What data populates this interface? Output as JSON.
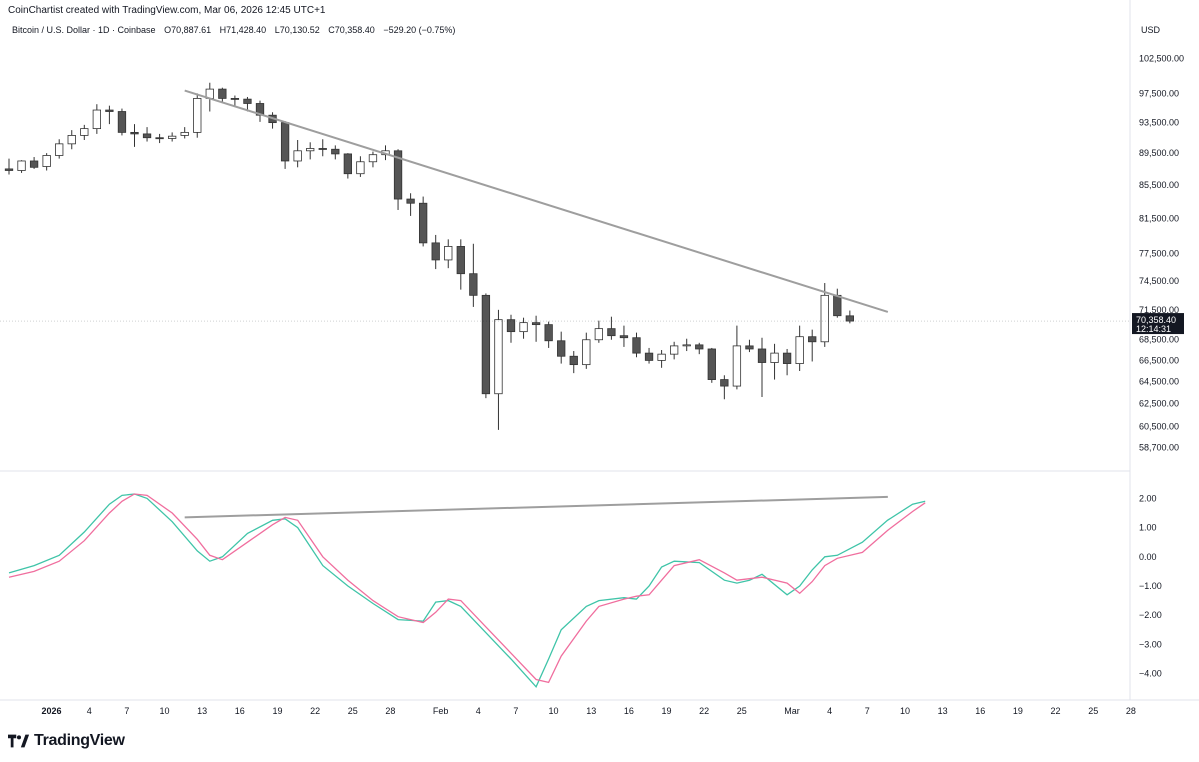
{
  "header": {
    "credit": "CoinChartist created with TradingView.com, Mar 06, 2026 12:45 UTC+1",
    "symbol": "Bitcoin / U.S. Dollar · 1D · Coinbase",
    "open": "O70,887.61",
    "high": "H71,428.40",
    "low": "L70,130.52",
    "close": "C70,358.40",
    "change": "−529.20 (−0.75%)",
    "currency": "USD"
  },
  "price_badge": {
    "price": "70,358.40",
    "countdown": "12:14:31"
  },
  "footer": {
    "brand": "TradingView"
  },
  "colors": {
    "up_fill": "#ffffff",
    "down_fill": "#555555",
    "wick": "#333333",
    "trendline": "#9e9e9e",
    "fast_line": "#3fc4a8",
    "slow_line": "#f06e9e",
    "badge_bg": "#131722"
  },
  "chart_data": [
    {
      "type": "candlestick",
      "title": "Bitcoin / U.S. Dollar · 1D · Coinbase",
      "y_scale": "log",
      "ylim": [
        57000,
        104500
      ],
      "price_ticks": [
        "102,500.00",
        "97,500.00",
        "93,500.00",
        "89,500.00",
        "85,500.00",
        "81,500.00",
        "77,500.00",
        "74,500.00",
        "71,500.00",
        "68,500.00",
        "66,500.00",
        "64,500.00",
        "62,500.00",
        "60,500.00",
        "58,700.00"
      ],
      "x_ticks": [
        "2026",
        "4",
        "7",
        "10",
        "13",
        "16",
        "19",
        "22",
        "25",
        "28",
        "Feb",
        "4",
        "7",
        "10",
        "13",
        "16",
        "19",
        "22",
        "25",
        "Mar",
        "4",
        "7",
        "10",
        "13",
        "16",
        "19",
        "22",
        "25",
        "28"
      ],
      "trendline": {
        "from": [
          "2026-01-14",
          97900
        ],
        "to": [
          "2026-03-08",
          72000
        ]
      },
      "candles": [
        {
          "date": "2025-12-31",
          "o": 87500,
          "h": 88800,
          "l": 86800,
          "c": 87300
        },
        {
          "date": "2026-01-01",
          "o": 87300,
          "h": 88600,
          "l": 87000,
          "c": 88500
        },
        {
          "date": "2026-01-02",
          "o": 88500,
          "h": 89000,
          "l": 87500,
          "c": 87700
        },
        {
          "date": "2026-01-03",
          "o": 87800,
          "h": 89500,
          "l": 87300,
          "c": 89200
        },
        {
          "date": "2026-01-04",
          "o": 89200,
          "h": 91300,
          "l": 88800,
          "c": 90700
        },
        {
          "date": "2026-01-05",
          "o": 90700,
          "h": 92500,
          "l": 90000,
          "c": 91800
        },
        {
          "date": "2026-01-06",
          "o": 91800,
          "h": 93200,
          "l": 91200,
          "c": 92700
        },
        {
          "date": "2026-01-07",
          "o": 92700,
          "h": 96000,
          "l": 92000,
          "c": 95200
        },
        {
          "date": "2026-01-08",
          "o": 95200,
          "h": 95800,
          "l": 93300,
          "c": 95000
        },
        {
          "date": "2026-01-09",
          "o": 95000,
          "h": 95400,
          "l": 91800,
          "c": 92200
        },
        {
          "date": "2026-01-10",
          "o": 92200,
          "h": 93300,
          "l": 90300,
          "c": 92000
        },
        {
          "date": "2026-01-11",
          "o": 92000,
          "h": 92900,
          "l": 91000,
          "c": 91500
        },
        {
          "date": "2026-01-12",
          "o": 91500,
          "h": 92000,
          "l": 90800,
          "c": 91400
        },
        {
          "date": "2026-01-13",
          "o": 91400,
          "h": 92200,
          "l": 91000,
          "c": 91700
        },
        {
          "date": "2026-01-14",
          "o": 91800,
          "h": 92900,
          "l": 91400,
          "c": 92200
        },
        {
          "date": "2026-01-15",
          "o": 92200,
          "h": 97500,
          "l": 91500,
          "c": 96800
        },
        {
          "date": "2026-01-16",
          "o": 96800,
          "h": 99000,
          "l": 95000,
          "c": 98100
        },
        {
          "date": "2026-01-17",
          "o": 98100,
          "h": 98300,
          "l": 96200,
          "c": 96800
        },
        {
          "date": "2026-01-18",
          "o": 96800,
          "h": 97200,
          "l": 95700,
          "c": 96700
        },
        {
          "date": "2026-01-19",
          "o": 96700,
          "h": 97000,
          "l": 95000,
          "c": 96100
        },
        {
          "date": "2026-01-20",
          "o": 96100,
          "h": 96500,
          "l": 93600,
          "c": 94500
        },
        {
          "date": "2026-01-21",
          "o": 94500,
          "h": 94900,
          "l": 92700,
          "c": 93500
        },
        {
          "date": "2026-01-22",
          "o": 93500,
          "h": 93700,
          "l": 87500,
          "c": 88500
        },
        {
          "date": "2026-01-23",
          "o": 88500,
          "h": 91200,
          "l": 87700,
          "c": 89800
        },
        {
          "date": "2026-01-24",
          "o": 89800,
          "h": 90900,
          "l": 88700,
          "c": 90100
        },
        {
          "date": "2026-01-25",
          "o": 90100,
          "h": 91300,
          "l": 89100,
          "c": 90000
        },
        {
          "date": "2026-01-26",
          "o": 90000,
          "h": 90500,
          "l": 88700,
          "c": 89400
        },
        {
          "date": "2026-01-27",
          "o": 89400,
          "h": 89500,
          "l": 86300,
          "c": 86900
        },
        {
          "date": "2026-01-28",
          "o": 86900,
          "h": 89100,
          "l": 86500,
          "c": 88400
        },
        {
          "date": "2026-01-29",
          "o": 88400,
          "h": 89700,
          "l": 87700,
          "c": 89300
        },
        {
          "date": "2026-01-30",
          "o": 89300,
          "h": 90500,
          "l": 88600,
          "c": 89800
        },
        {
          "date": "2026-01-31",
          "o": 89800,
          "h": 90000,
          "l": 82500,
          "c": 83800
        },
        {
          "date": "2026-02-01",
          "o": 83800,
          "h": 84500,
          "l": 81800,
          "c": 83300
        },
        {
          "date": "2026-02-02",
          "o": 83300,
          "h": 84100,
          "l": 78300,
          "c": 78700
        },
        {
          "date": "2026-02-03",
          "o": 78700,
          "h": 79600,
          "l": 75800,
          "c": 76800
        },
        {
          "date": "2026-02-04",
          "o": 76800,
          "h": 79100,
          "l": 75900,
          "c": 78300
        },
        {
          "date": "2026-02-05",
          "o": 78300,
          "h": 79100,
          "l": 73600,
          "c": 75300
        },
        {
          "date": "2026-02-06",
          "o": 75300,
          "h": 78600,
          "l": 71800,
          "c": 73000
        },
        {
          "date": "2026-02-07",
          "o": 73000,
          "h": 73200,
          "l": 63000,
          "c": 63400
        },
        {
          "date": "2026-02-08",
          "o": 63400,
          "h": 71500,
          "l": 60200,
          "c": 70500
        },
        {
          "date": "2026-02-09",
          "o": 70500,
          "h": 71000,
          "l": 68200,
          "c": 69300
        },
        {
          "date": "2026-02-10",
          "o": 69300,
          "h": 70700,
          "l": 68600,
          "c": 70200
        },
        {
          "date": "2026-02-11",
          "o": 70200,
          "h": 70900,
          "l": 68300,
          "c": 70000
        },
        {
          "date": "2026-02-12",
          "o": 70000,
          "h": 70300,
          "l": 67700,
          "c": 68400
        },
        {
          "date": "2026-02-13",
          "o": 68400,
          "h": 69300,
          "l": 66200,
          "c": 66900
        },
        {
          "date": "2026-02-14",
          "o": 66900,
          "h": 67400,
          "l": 65300,
          "c": 66100
        },
        {
          "date": "2026-02-15",
          "o": 66100,
          "h": 69200,
          "l": 65700,
          "c": 68500
        },
        {
          "date": "2026-02-16",
          "o": 68500,
          "h": 70400,
          "l": 68200,
          "c": 69600
        },
        {
          "date": "2026-02-17",
          "o": 69600,
          "h": 70800,
          "l": 68500,
          "c": 68900
        },
        {
          "date": "2026-02-18",
          "o": 68900,
          "h": 69900,
          "l": 67800,
          "c": 68700
        },
        {
          "date": "2026-02-19",
          "o": 68700,
          "h": 69200,
          "l": 66800,
          "c": 67200
        },
        {
          "date": "2026-02-20",
          "o": 67200,
          "h": 67700,
          "l": 66200,
          "c": 66500
        },
        {
          "date": "2026-02-21",
          "o": 66500,
          "h": 67500,
          "l": 65800,
          "c": 67100
        },
        {
          "date": "2026-02-22",
          "o": 67100,
          "h": 68300,
          "l": 66600,
          "c": 67900
        },
        {
          "date": "2026-02-23",
          "o": 67900,
          "h": 68600,
          "l": 67400,
          "c": 68000
        },
        {
          "date": "2026-02-24",
          "o": 68000,
          "h": 68200,
          "l": 67100,
          "c": 67600
        },
        {
          "date": "2026-02-25",
          "o": 67600,
          "h": 67700,
          "l": 64400,
          "c": 64700
        },
        {
          "date": "2026-02-26",
          "o": 64700,
          "h": 65100,
          "l": 62900,
          "c": 64100
        },
        {
          "date": "2026-02-27",
          "o": 64100,
          "h": 69900,
          "l": 63800,
          "c": 67900
        },
        {
          "date": "2026-02-28",
          "o": 67900,
          "h": 68500,
          "l": 67300,
          "c": 67600
        },
        {
          "date": "2026-03-01",
          "o": 67600,
          "h": 68700,
          "l": 63100,
          "c": 66300
        },
        {
          "date": "2026-03-02",
          "o": 66300,
          "h": 68100,
          "l": 64700,
          "c": 67200
        },
        {
          "date": "2026-03-03",
          "o": 67200,
          "h": 67600,
          "l": 65100,
          "c": 66200
        },
        {
          "date": "2026-03-04",
          "o": 66200,
          "h": 69900,
          "l": 65500,
          "c": 68800
        },
        {
          "date": "2026-03-05",
          "o": 68800,
          "h": 69500,
          "l": 66400,
          "c": 68300
        },
        {
          "date": "2026-03-06",
          "o": 68300,
          "h": 74300,
          "l": 67800,
          "c": 73000
        },
        {
          "date": "2026-03-07",
          "o": 73000,
          "h": 73700,
          "l": 70700,
          "c": 70900
        },
        {
          "date": "2026-03-08",
          "o": 70887.61,
          "h": 71428.4,
          "l": 70130.52,
          "c": 70358.4
        }
      ]
    },
    {
      "type": "line",
      "y_ticks": [
        "2.00",
        "1.00",
        "0.00",
        "−1.00",
        "−2.00",
        "−3.00",
        "−4.00"
      ],
      "ylim": [
        -4.8,
        2.8
      ],
      "trendline": {
        "from": [
          "2026-01-14",
          1.35
        ],
        "to": [
          "2026-03-08",
          2.05
        ]
      },
      "series": [
        {
          "color": "#3fc4a8",
          "points": [
            [
              "2025-12-31",
              -0.55
            ],
            [
              "2026-01-02",
              -0.3
            ],
            [
              "2026-01-04",
              0.05
            ],
            [
              "2026-01-06",
              0.85
            ],
            [
              "2026-01-08",
              1.8
            ],
            [
              "2026-01-09",
              2.1
            ],
            [
              "2026-01-10",
              2.15
            ],
            [
              "2026-01-11",
              2.0
            ],
            [
              "2026-01-13",
              1.2
            ],
            [
              "2026-01-15",
              0.2
            ],
            [
              "2026-01-16",
              -0.15
            ],
            [
              "2026-01-17",
              0.0
            ],
            [
              "2026-01-19",
              0.8
            ],
            [
              "2026-01-21",
              1.25
            ],
            [
              "2026-01-22",
              1.3
            ],
            [
              "2026-01-23",
              1.0
            ],
            [
              "2026-01-25",
              -0.3
            ],
            [
              "2026-01-27",
              -1.0
            ],
            [
              "2026-01-29",
              -1.6
            ],
            [
              "2026-01-31",
              -2.15
            ],
            [
              "2026-02-02",
              -2.2
            ],
            [
              "2026-02-03",
              -1.55
            ],
            [
              "2026-02-04",
              -1.5
            ],
            [
              "2026-02-05",
              -1.7
            ],
            [
              "2026-02-07",
              -2.6
            ],
            [
              "2026-02-09",
              -3.5
            ],
            [
              "2026-02-11",
              -4.45
            ],
            [
              "2026-02-12",
              -3.5
            ],
            [
              "2026-02-13",
              -2.5
            ],
            [
              "2026-02-15",
              -1.7
            ],
            [
              "2026-02-16",
              -1.5
            ],
            [
              "2026-02-18",
              -1.4
            ],
            [
              "2026-02-19",
              -1.45
            ],
            [
              "2026-02-20",
              -1.0
            ],
            [
              "2026-02-21",
              -0.35
            ],
            [
              "2026-02-22",
              -0.15
            ],
            [
              "2026-02-24",
              -0.2
            ],
            [
              "2026-02-26",
              -0.8
            ],
            [
              "2026-02-27",
              -0.9
            ],
            [
              "2026-02-28",
              -0.8
            ],
            [
              "2026-03-01",
              -0.6
            ],
            [
              "2026-03-03",
              -1.3
            ],
            [
              "2026-03-04",
              -1.0
            ],
            [
              "2026-03-05",
              -0.45
            ],
            [
              "2026-03-06",
              0.0
            ],
            [
              "2026-03-07",
              0.05
            ],
            [
              "2026-03-09",
              0.5
            ],
            [
              "2026-03-11",
              1.25
            ],
            [
              "2026-03-13",
              1.8
            ],
            [
              "2026-03-14",
              1.9
            ]
          ]
        },
        {
          "color": "#f06e9e",
          "points": [
            [
              "2025-12-31",
              -0.7
            ],
            [
              "2026-01-02",
              -0.5
            ],
            [
              "2026-01-04",
              -0.15
            ],
            [
              "2026-01-06",
              0.55
            ],
            [
              "2026-01-08",
              1.5
            ],
            [
              "2026-01-09",
              1.9
            ],
            [
              "2026-01-10",
              2.15
            ],
            [
              "2026-01-11",
              2.1
            ],
            [
              "2026-01-13",
              1.5
            ],
            [
              "2026-01-15",
              0.6
            ],
            [
              "2026-01-16",
              0.05
            ],
            [
              "2026-01-17",
              -0.1
            ],
            [
              "2026-01-19",
              0.5
            ],
            [
              "2026-01-21",
              1.1
            ],
            [
              "2026-01-22",
              1.35
            ],
            [
              "2026-01-23",
              1.25
            ],
            [
              "2026-01-25",
              0.0
            ],
            [
              "2026-01-27",
              -0.8
            ],
            [
              "2026-01-29",
              -1.5
            ],
            [
              "2026-01-31",
              -2.05
            ],
            [
              "2026-02-02",
              -2.25
            ],
            [
              "2026-02-03",
              -1.9
            ],
            [
              "2026-02-04",
              -1.45
            ],
            [
              "2026-02-05",
              -1.5
            ],
            [
              "2026-02-07",
              -2.4
            ],
            [
              "2026-02-09",
              -3.3
            ],
            [
              "2026-02-11",
              -4.2
            ],
            [
              "2026-02-12",
              -4.3
            ],
            [
              "2026-02-13",
              -3.4
            ],
            [
              "2026-02-15",
              -2.2
            ],
            [
              "2026-02-16",
              -1.7
            ],
            [
              "2026-02-18",
              -1.45
            ],
            [
              "2026-02-19",
              -1.35
            ],
            [
              "2026-02-20",
              -1.3
            ],
            [
              "2026-02-21",
              -0.8
            ],
            [
              "2026-02-22",
              -0.3
            ],
            [
              "2026-02-24",
              -0.1
            ],
            [
              "2026-02-26",
              -0.55
            ],
            [
              "2026-02-27",
              -0.8
            ],
            [
              "2026-02-28",
              -0.75
            ],
            [
              "2026-03-01",
              -0.7
            ],
            [
              "2026-03-03",
              -0.9
            ],
            [
              "2026-03-04",
              -1.25
            ],
            [
              "2026-03-05",
              -0.85
            ],
            [
              "2026-03-06",
              -0.3
            ],
            [
              "2026-03-07",
              -0.05
            ],
            [
              "2026-03-09",
              0.15
            ],
            [
              "2026-03-11",
              0.9
            ],
            [
              "2026-03-13",
              1.55
            ],
            [
              "2026-03-14",
              1.85
            ]
          ]
        }
      ]
    }
  ]
}
